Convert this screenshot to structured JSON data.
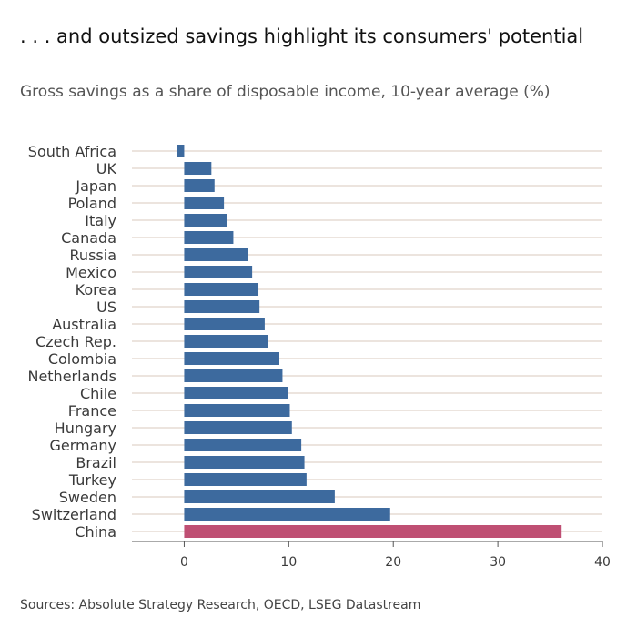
{
  "title": ". . . and outsized savings highlight its consumers' potential",
  "subtitle": "Gross savings as a share of disposable income, 10-year average (%)",
  "source": "Sources: Absolute Strategy Research, OECD, LSEG Datastream",
  "colors": {
    "bar": "#3d6a9e",
    "highlight": "#bf4f73",
    "gridline": "#d9c9bd",
    "axis": "#555555"
  },
  "chart_data": {
    "type": "bar",
    "orientation": "horizontal",
    "title": ". . . and outsized savings highlight its consumers' potential",
    "xlabel": "",
    "ylabel": "",
    "xlim": [
      -5,
      40
    ],
    "xticks": [
      0,
      10,
      20,
      30,
      40
    ],
    "grid": true,
    "highlight_category": "China",
    "categories": [
      "South Africa",
      "UK",
      "Japan",
      "Poland",
      "Italy",
      "Canada",
      "Russia",
      "Mexico",
      "Korea",
      "US",
      "Australia",
      "Czech Rep.",
      "Colombia",
      "Netherlands",
      "Chile",
      "France",
      "Hungary",
      "Germany",
      "Brazil",
      "Turkey",
      "Sweden",
      "Switzerland",
      "China"
    ],
    "values": [
      -0.7,
      2.6,
      2.9,
      3.8,
      4.1,
      4.7,
      6.1,
      6.5,
      7.1,
      7.2,
      7.7,
      8.0,
      9.1,
      9.4,
      9.9,
      10.1,
      10.3,
      11.2,
      11.5,
      11.7,
      14.4,
      19.7,
      36.1
    ]
  }
}
